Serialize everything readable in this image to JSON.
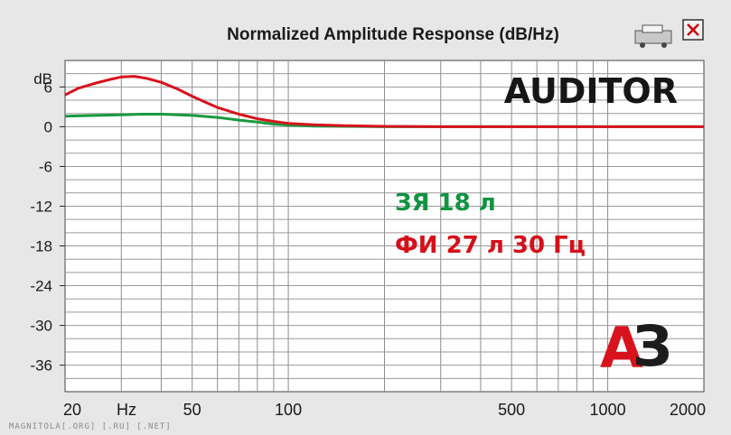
{
  "chart_data": {
    "type": "line",
    "title": "Normalized Amplitude Response (dB/Hz)",
    "ylabel": "dB",
    "xlabel": "Hz",
    "xscale": "log",
    "xlim": [
      20,
      2000
    ],
    "ylim": [
      -40,
      10
    ],
    "grid": true,
    "y_ticks": [
      6,
      0,
      -6,
      -12,
      -18,
      -24,
      -30,
      -36
    ],
    "y_tick_labels": [
      "6",
      "0",
      "-6",
      "-12",
      "-18",
      "-24",
      "-30",
      "-36"
    ],
    "x_tick_labels": [
      {
        "value": 20,
        "label": "20"
      },
      {
        "value": 50,
        "label": "50"
      },
      {
        "value": 100,
        "label": "100"
      },
      {
        "value": 500,
        "label": "500"
      },
      {
        "value": 1000,
        "label": "1000"
      },
      {
        "value": 2000,
        "label": "2000"
      }
    ],
    "series": [
      {
        "name": "ЗЯ 18 л",
        "color": "#179a3f",
        "x": [
          20,
          25,
          30,
          35,
          40,
          45,
          50,
          60,
          70,
          80,
          90,
          100,
          120,
          150,
          200,
          300,
          500,
          1000,
          2000
        ],
        "y": [
          1.6,
          1.7,
          1.8,
          1.9,
          1.9,
          1.8,
          1.7,
          1.4,
          1.0,
          0.7,
          0.4,
          0.25,
          0.1,
          0.05,
          0.0,
          0.0,
          0.0,
          0.0,
          0.0
        ]
      },
      {
        "name": "ФИ 27 л 30 Гц",
        "color": "#d8121c",
        "x": [
          20,
          22,
          25,
          28,
          30,
          33,
          36,
          40,
          45,
          50,
          55,
          60,
          70,
          80,
          90,
          100,
          120,
          150,
          200,
          300,
          500,
          1000,
          2000
        ],
        "y": [
          4.8,
          5.8,
          6.6,
          7.2,
          7.5,
          7.6,
          7.3,
          6.7,
          5.7,
          4.6,
          3.7,
          2.9,
          1.9,
          1.2,
          0.8,
          0.5,
          0.3,
          0.15,
          0.05,
          0.0,
          0.0,
          0.0,
          0.0
        ]
      }
    ]
  },
  "overlay": {
    "brand": "AUDITOR",
    "logo": {
      "a": "А",
      "three": "З",
      "colors": [
        "#d8121c",
        "#1c1c1c"
      ]
    },
    "watermark": "MAGNITOLA[.ORG] [.RU] [.NET]",
    "toolbar_icons": [
      "printer-icon",
      "close-icon"
    ]
  }
}
